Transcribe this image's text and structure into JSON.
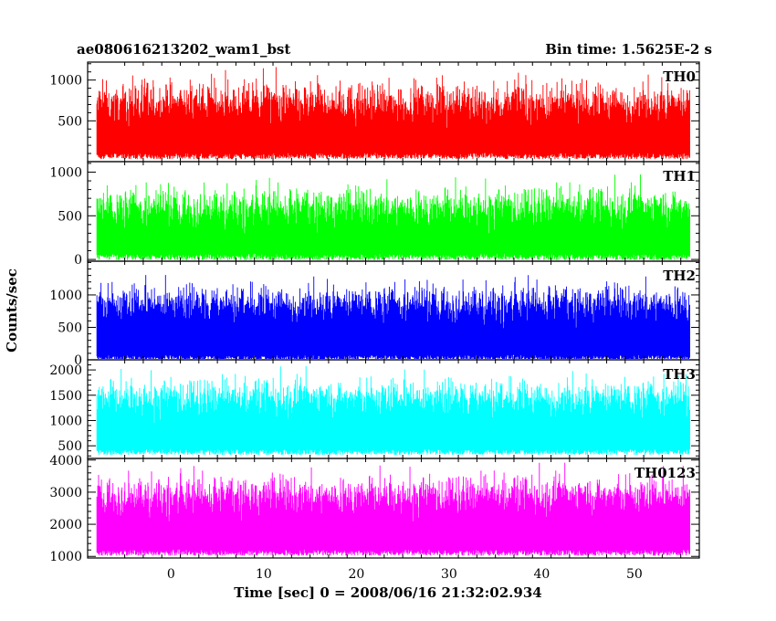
{
  "chart_data": {
    "type": "line",
    "title_left": "ae080616213202_wam1_bst",
    "title_right": "Bin time: 1.5625E-2 s",
    "xlabel": "Time [sec] 0 = 2008/06/16 21:32:02.934",
    "ylabel": "Counts/sec",
    "xlim": [
      -9,
      57
    ],
    "data_xrange": [
      -8,
      56
    ],
    "xticks": [
      0,
      10,
      20,
      30,
      40,
      50
    ],
    "xtick_labels": [
      "0",
      "10",
      "20",
      "30",
      "40",
      "50"
    ],
    "grid": false,
    "panels": [
      {
        "name": "TH0",
        "color": "#ff0000",
        "ylim": [
          0,
          1220
        ],
        "yticks": [
          500,
          1000
        ],
        "ytick_labels": [
          "500",
          "1000"
        ],
        "base": 70,
        "mean": 560,
        "spread": 520
      },
      {
        "name": "TH1",
        "color": "#00ff00",
        "ylim": [
          -20,
          1120
        ],
        "yticks": [
          0,
          500,
          1000
        ],
        "ytick_labels": [
          "0",
          "500",
          "1000"
        ],
        "base": 30,
        "mean": 450,
        "spread": 480
      },
      {
        "name": "TH2",
        "color": "#0000ff",
        "ylim": [
          0,
          1520
        ],
        "yticks": [
          0,
          500,
          1000
        ],
        "ytick_labels": [
          "0",
          "500",
          "1000"
        ],
        "base": 30,
        "mean": 680,
        "spread": 620
      },
      {
        "name": "TH3",
        "color": "#00ffff",
        "ylim": [
          250,
          2200
        ],
        "yticks": [
          500,
          1000,
          1500,
          2000
        ],
        "ytick_labels": [
          "500",
          "1000",
          "1500",
          "2000"
        ],
        "base": 380,
        "mean": 1200,
        "spread": 800
      },
      {
        "name": "TH0123",
        "color": "#ff00ff",
        "ylim": [
          950,
          4050
        ],
        "yticks": [
          1000,
          2000,
          3000,
          4000
        ],
        "ytick_labels": [
          "1000",
          "2000",
          "3000",
          "4000"
        ],
        "base": 1120,
        "mean": 2500,
        "spread": 1300
      }
    ]
  }
}
